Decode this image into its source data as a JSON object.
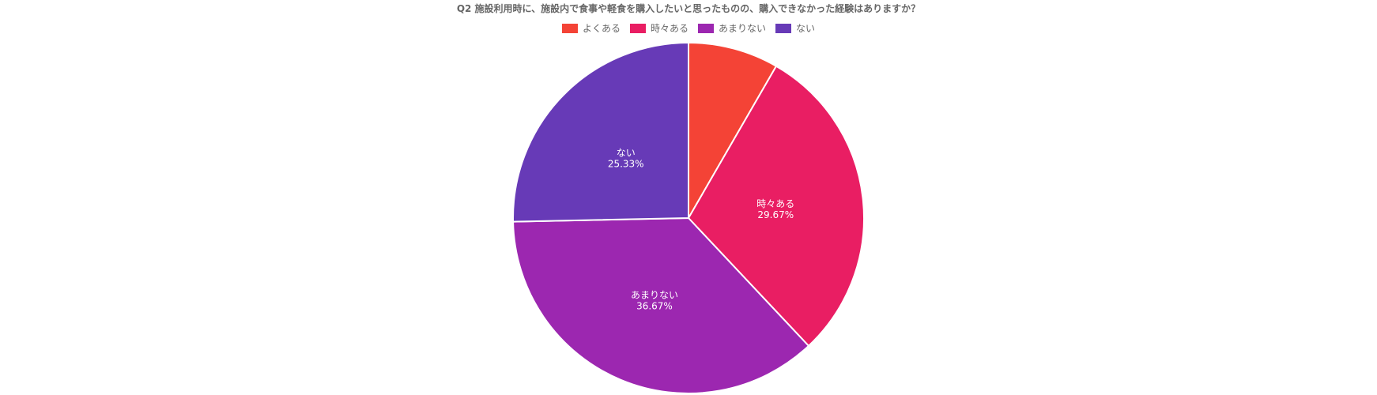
{
  "chart_data": {
    "type": "pie",
    "title": "Q2 施設利用時に、施設内で食事や軽食を購入したいと思ったものの、購入できなかった経験はありますか？",
    "legend_position": "top",
    "slices": [
      {
        "label": "よくある",
        "value": 8.33,
        "color": "#f44336",
        "pct_label": ""
      },
      {
        "label": "時々ある",
        "value": 29.67,
        "color": "#e91e63",
        "pct_label": "29.67%"
      },
      {
        "label": "あまりない",
        "value": 36.67,
        "color": "#9c27b0",
        "pct_label": "36.67%"
      },
      {
        "label": "ない",
        "value": 25.33,
        "color": "#673ab7",
        "pct_label": "25.33%"
      }
    ]
  }
}
